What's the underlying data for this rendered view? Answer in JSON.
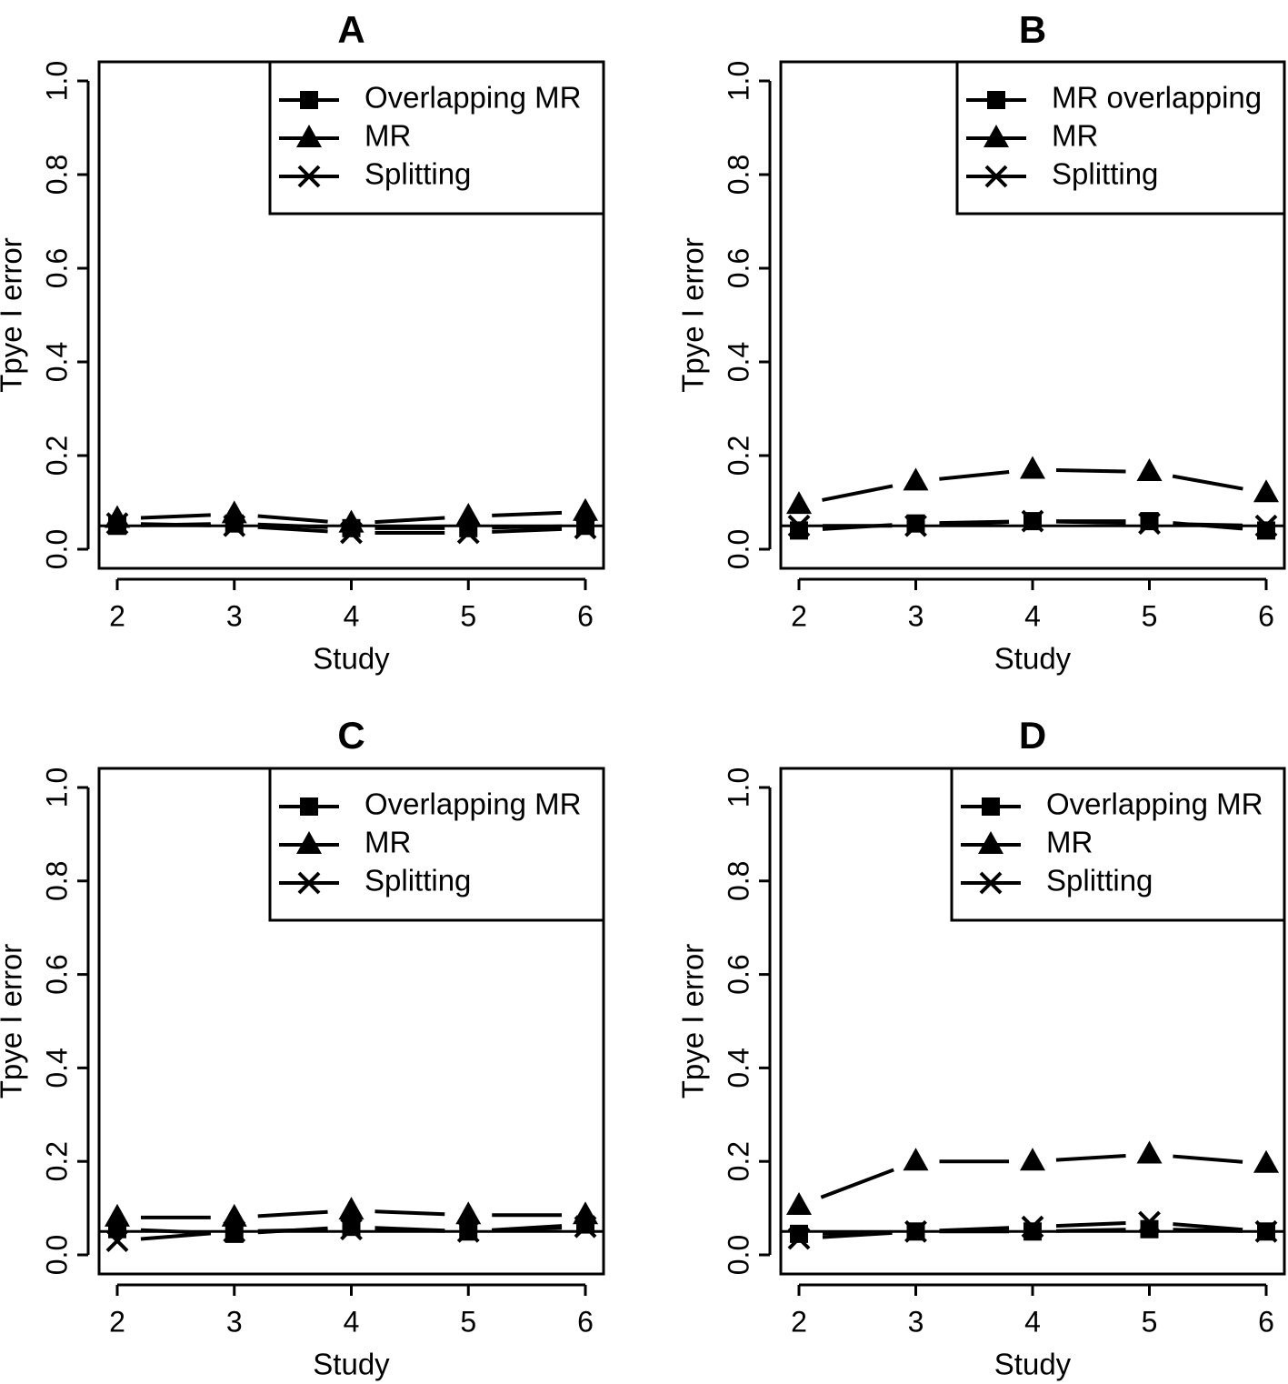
{
  "chart_data": [
    {
      "type": "line",
      "panel": "A",
      "title": "A",
      "xlabel": "Study",
      "ylabel": "Tpye I error",
      "x": [
        2,
        3,
        4,
        5,
        6
      ],
      "xticks": [
        "2",
        "3",
        "4",
        "5",
        "6"
      ],
      "yticks": [
        "0.0",
        "0.2",
        "0.4",
        "0.6",
        "0.8",
        "1.0"
      ],
      "ylim": [
        0,
        1
      ],
      "reference_line": 0.05,
      "legend_position": "top-right",
      "series": [
        {
          "name": "Overlapping MR",
          "marker": "square",
          "values": [
            0.05,
            0.055,
            0.045,
            0.045,
            0.05
          ]
        },
        {
          "name": "MR",
          "marker": "triangle",
          "values": [
            0.065,
            0.075,
            0.055,
            0.07,
            0.08
          ]
        },
        {
          "name": "Splitting",
          "marker": "cross",
          "values": [
            0.055,
            0.05,
            0.035,
            0.035,
            0.045
          ]
        }
      ]
    },
    {
      "type": "line",
      "panel": "B",
      "title": "B",
      "xlabel": "Study",
      "ylabel": "Tpye I error",
      "x": [
        2,
        3,
        4,
        5,
        6
      ],
      "xticks": [
        "2",
        "3",
        "4",
        "5",
        "6"
      ],
      "yticks": [
        "0.0",
        "0.2",
        "0.4",
        "0.6",
        "0.8",
        "1.0"
      ],
      "ylim": [
        0,
        1
      ],
      "reference_line": 0.05,
      "legend_position": "top-right",
      "series": [
        {
          "name": "MR overlapping",
          "marker": "square",
          "values": [
            0.04,
            0.055,
            0.06,
            0.06,
            0.04
          ]
        },
        {
          "name": "MR",
          "marker": "triangle",
          "values": [
            0.095,
            0.145,
            0.17,
            0.165,
            0.12
          ]
        },
        {
          "name": "Splitting",
          "marker": "cross",
          "values": [
            0.05,
            0.05,
            0.06,
            0.055,
            0.05
          ]
        }
      ]
    },
    {
      "type": "line",
      "panel": "C",
      "title": "C",
      "xlabel": "Study",
      "ylabel": "Tpye I error",
      "x": [
        2,
        3,
        4,
        5,
        6
      ],
      "xticks": [
        "2",
        "3",
        "4",
        "5",
        "6"
      ],
      "yticks": [
        "0.0",
        "0.2",
        "0.4",
        "0.6",
        "0.8",
        "1.0"
      ],
      "ylim": [
        0,
        1
      ],
      "reference_line": 0.05,
      "legend_position": "top-right",
      "series": [
        {
          "name": "Overlapping MR",
          "marker": "square",
          "values": [
            0.055,
            0.045,
            0.06,
            0.05,
            0.065
          ]
        },
        {
          "name": "MR",
          "marker": "triangle",
          "values": [
            0.08,
            0.08,
            0.095,
            0.085,
            0.085
          ]
        },
        {
          "name": "Splitting",
          "marker": "cross",
          "values": [
            0.03,
            0.05,
            0.055,
            0.05,
            0.06
          ]
        }
      ]
    },
    {
      "type": "line",
      "panel": "D",
      "title": "D",
      "xlabel": "Study",
      "ylabel": "Tpye I error",
      "x": [
        2,
        3,
        4,
        5,
        6
      ],
      "xticks": [
        "2",
        "3",
        "4",
        "5",
        "6"
      ],
      "yticks": [
        "0.0",
        "0.2",
        "0.4",
        "0.6",
        "0.8",
        "1.0"
      ],
      "ylim": [
        0,
        1
      ],
      "reference_line": 0.05,
      "legend_position": "top-right",
      "series": [
        {
          "name": "Overlapping MR",
          "marker": "square",
          "values": [
            0.045,
            0.05,
            0.05,
            0.055,
            0.05
          ]
        },
        {
          "name": "MR",
          "marker": "triangle",
          "values": [
            0.105,
            0.2,
            0.2,
            0.215,
            0.195
          ]
        },
        {
          "name": "Splitting",
          "marker": "cross",
          "values": [
            0.035,
            0.05,
            0.06,
            0.07,
            0.05
          ]
        }
      ]
    }
  ]
}
